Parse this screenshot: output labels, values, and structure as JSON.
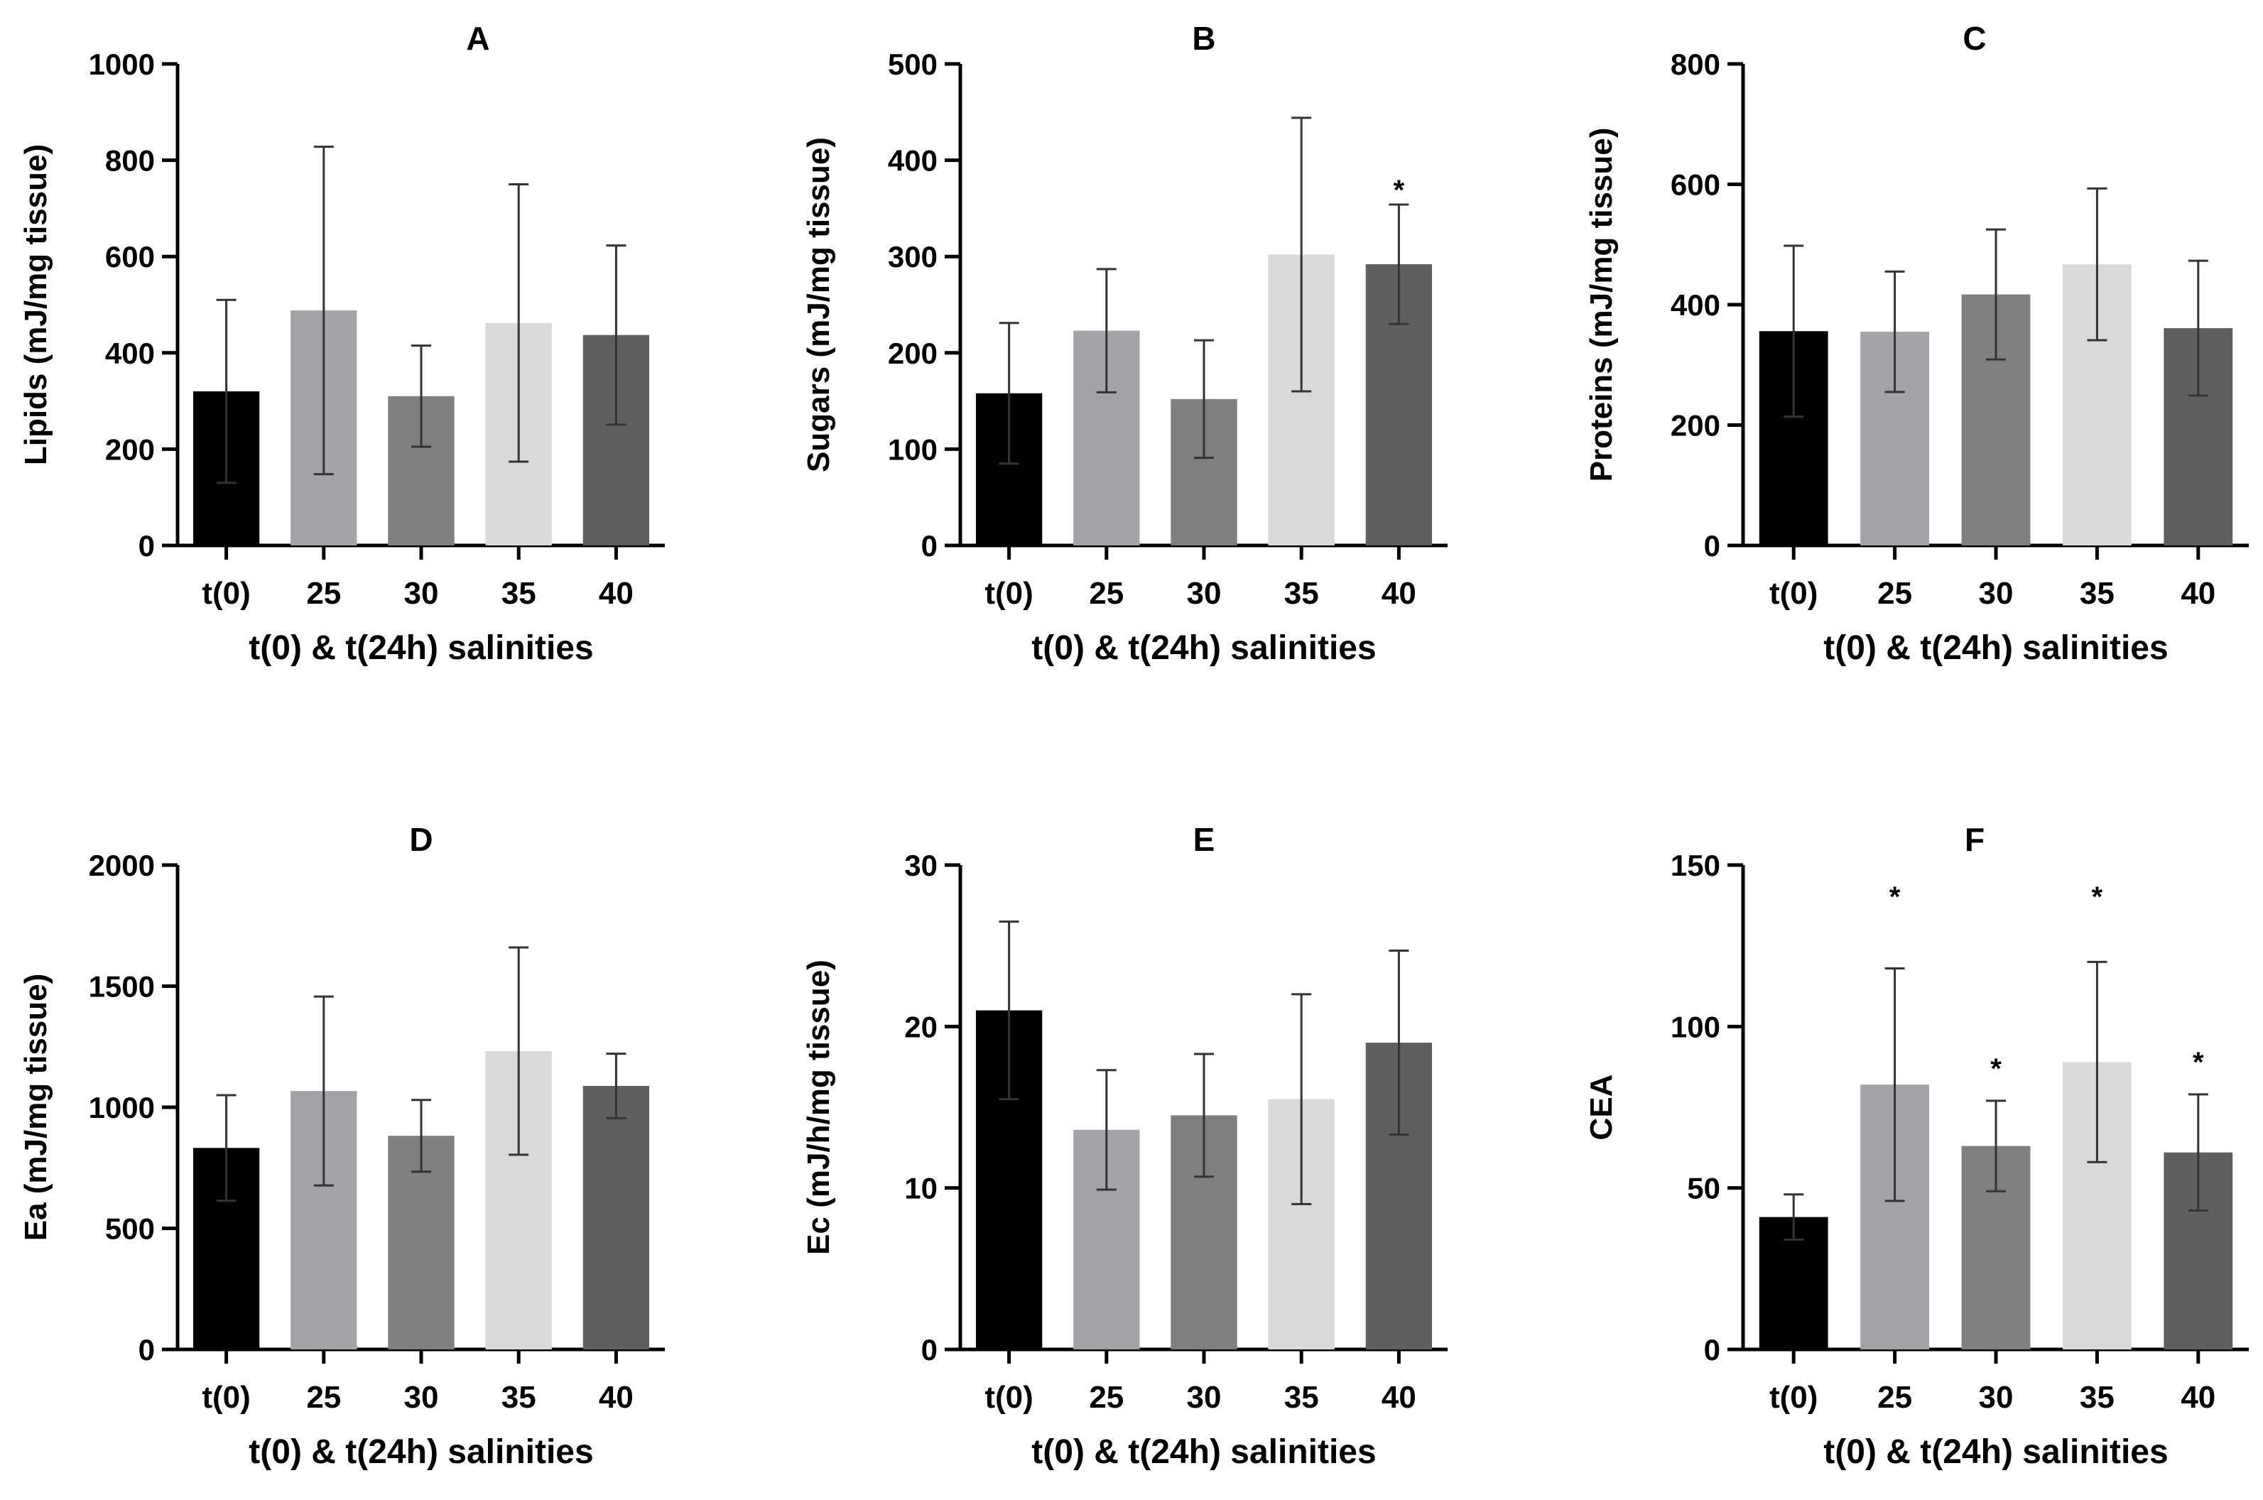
{
  "chart_data": [
    {
      "type": "bar",
      "title": "A",
      "xlabel": "t(0) & t(24h) salinities",
      "ylabel": "Lipids (mJ/mg tissue)",
      "ylim": [
        0,
        1000
      ],
      "yticks": [
        0,
        200,
        400,
        600,
        800,
        1000
      ],
      "categories": [
        "t(0)",
        "25",
        "30",
        "35",
        "40"
      ],
      "values": [
        320,
        488,
        310,
        462,
        437
      ],
      "errors": [
        190,
        340,
        105,
        288,
        186
      ],
      "significance": [
        "",
        "",
        "",
        "",
        ""
      ],
      "colors": [
        "#000000",
        "#a3a3a7",
        "#7f7f7f",
        "#d9d9d9",
        "#5f5f5f"
      ]
    },
    {
      "type": "bar",
      "title": "B",
      "xlabel": "t(0) & t(24h) salinities",
      "ylabel": "Sugars (mJ/mg tissue)",
      "ylim": [
        0,
        500
      ],
      "yticks": [
        0,
        100,
        200,
        300,
        400,
        500
      ],
      "categories": [
        "t(0)",
        "25",
        "30",
        "35",
        "40"
      ],
      "values": [
        158,
        223,
        152,
        302,
        292
      ],
      "errors": [
        73,
        64,
        61,
        142,
        62
      ],
      "significance": [
        "",
        "",
        "",
        "",
        "*"
      ],
      "colors": [
        "#000000",
        "#a3a3a7",
        "#7f7f7f",
        "#d9d9d9",
        "#5f5f5f"
      ]
    },
    {
      "type": "bar",
      "title": "C",
      "xlabel": "t(0) & t(24h) salinities",
      "ylabel": "Proteins (mJ/mg tissue)",
      "ylim": [
        0,
        800
      ],
      "yticks": [
        0,
        200,
        400,
        600,
        800
      ],
      "categories": [
        "t(0)",
        "25",
        "30",
        "35",
        "40"
      ],
      "values": [
        356,
        355,
        417,
        467,
        361
      ],
      "errors": [
        142,
        100,
        108,
        126,
        112
      ],
      "significance": [
        "",
        "",
        "",
        "",
        ""
      ],
      "colors": [
        "#000000",
        "#a3a3a7",
        "#7f7f7f",
        "#d9d9d9",
        "#5f5f5f"
      ]
    },
    {
      "type": "bar",
      "title": "D",
      "xlabel": "t(0) & t(24h) salinities",
      "ylabel": "Ea (mJ/mg tissue)",
      "ylim": [
        0,
        2000
      ],
      "yticks": [
        0,
        500,
        1000,
        1500,
        2000
      ],
      "categories": [
        "t(0)",
        "25",
        "30",
        "35",
        "40"
      ],
      "values": [
        832,
        1067,
        882,
        1232,
        1088
      ],
      "errors": [
        218,
        390,
        148,
        428,
        133
      ],
      "significance": [
        "",
        "",
        "",
        "",
        ""
      ],
      "colors": [
        "#000000",
        "#a3a3a7",
        "#7f7f7f",
        "#d9d9d9",
        "#5f5f5f"
      ]
    },
    {
      "type": "bar",
      "title": "E",
      "xlabel": "t(0) & t(24h) salinities",
      "ylabel": "Ec (mJ/h/mg tissue)",
      "ylim": [
        0,
        30
      ],
      "yticks": [
        0,
        10,
        20,
        30
      ],
      "categories": [
        "t(0)",
        "25",
        "30",
        "35",
        "40"
      ],
      "values": [
        21.0,
        13.6,
        14.5,
        15.5,
        19.0
      ],
      "errors": [
        5.5,
        3.7,
        3.8,
        6.5,
        5.7
      ],
      "significance": [
        "",
        "",
        "",
        "",
        ""
      ],
      "colors": [
        "#000000",
        "#a3a3a7",
        "#7f7f7f",
        "#d9d9d9",
        "#5f5f5f"
      ]
    },
    {
      "type": "bar",
      "title": "F",
      "xlabel": "t(0) & t(24h) salinities",
      "ylabel": "CEA",
      "ylim": [
        0,
        150
      ],
      "yticks": [
        0,
        50,
        100,
        150
      ],
      "categories": [
        "t(0)",
        "25",
        "30",
        "35",
        "40"
      ],
      "values": [
        41,
        82,
        63,
        89,
        61
      ],
      "errors": [
        7,
        36,
        14,
        31,
        18
      ],
      "significance": [
        "",
        "*",
        "*",
        "*",
        "*"
      ],
      "colors": [
        "#000000",
        "#a3a3a7",
        "#7f7f7f",
        "#d9d9d9",
        "#5f5f5f"
      ]
    }
  ]
}
